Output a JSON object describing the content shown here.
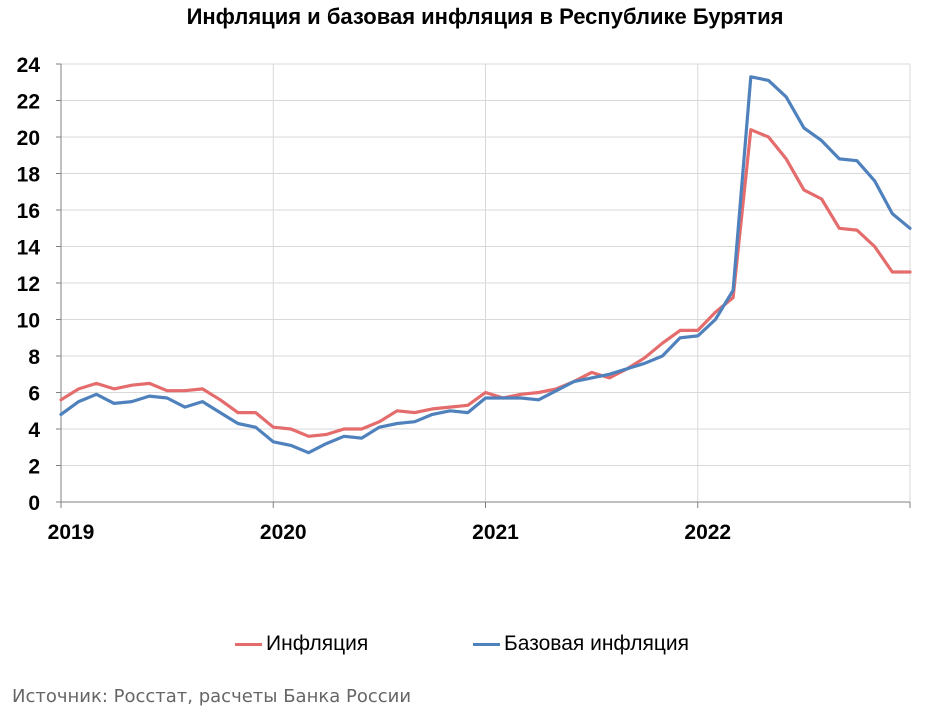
{
  "source_text": "Источник: Росстат, расчеты Банка России",
  "chart_data": {
    "type": "line",
    "title": "Инфляция и базовая инфляция в Республике Бурятия",
    "xlabel": "",
    "ylabel": "",
    "ylim": [
      0,
      24
    ],
    "y_ticks": [
      "0",
      "2",
      "4",
      "6",
      "8",
      "10",
      "12",
      "14",
      "16",
      "18",
      "20",
      "22",
      "24"
    ],
    "x_ticks": [
      "2019",
      "2020",
      "2021",
      "2022"
    ],
    "x_start": "2019-01",
    "x_end": "2022-12",
    "grid": true,
    "legend_position": "bottom",
    "series": [
      {
        "name": "Инфляция",
        "color": "#e46c6c",
        "values": [
          5.6,
          6.2,
          6.5,
          6.2,
          6.4,
          6.5,
          6.1,
          6.1,
          6.2,
          5.6,
          4.9,
          4.9,
          4.1,
          4.0,
          3.6,
          3.7,
          4.0,
          4.0,
          4.4,
          5.0,
          4.9,
          5.1,
          5.2,
          5.3,
          6.0,
          5.7,
          5.9,
          6.0,
          6.2,
          6.6,
          7.1,
          6.8,
          7.3,
          7.9,
          8.7,
          9.4,
          9.4,
          10.4,
          11.2,
          20.4,
          20.0,
          18.8,
          17.1,
          16.6,
          15.0,
          14.9,
          14.0,
          12.6,
          12.6
        ]
      },
      {
        "name": "Базовая инфляция",
        "color": "#4f81bd",
        "values": [
          4.8,
          5.5,
          5.9,
          5.4,
          5.5,
          5.8,
          5.7,
          5.2,
          5.5,
          4.9,
          4.3,
          4.1,
          3.3,
          3.1,
          2.7,
          3.2,
          3.6,
          3.5,
          4.1,
          4.3,
          4.4,
          4.8,
          5.0,
          4.9,
          5.7,
          5.7,
          5.7,
          5.6,
          6.1,
          6.6,
          6.8,
          7.0,
          7.3,
          7.6,
          8.0,
          9.0,
          9.1,
          10.0,
          11.6,
          23.3,
          23.1,
          22.2,
          20.5,
          19.8,
          18.8,
          18.7,
          17.6,
          15.8,
          15.0
        ]
      }
    ]
  }
}
